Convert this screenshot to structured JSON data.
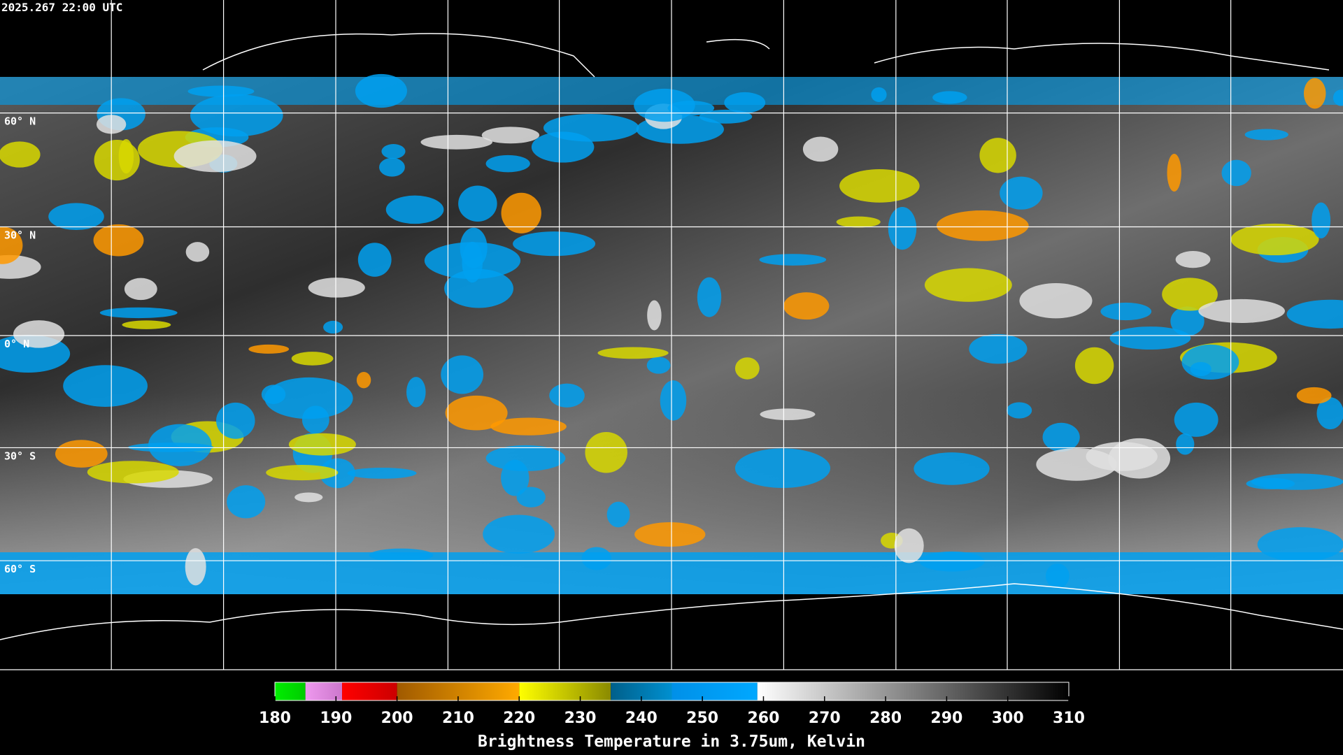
{
  "timestamp": "2025.267 22:00 UTC",
  "latitude_labels": [
    "60° N",
    "30° N",
    "0° N",
    "30° S",
    "60° S"
  ],
  "colorbar": {
    "title": "Brightness Temperature in 3.75um, Kelvin",
    "range": [
      180,
      310
    ],
    "ticks": [
      180,
      190,
      200,
      210,
      220,
      230,
      240,
      250,
      260,
      270,
      280,
      290,
      300,
      310
    ],
    "segments": [
      {
        "from": 180,
        "to": 185,
        "colors": [
          "#00ee00",
          "#00cc00"
        ]
      },
      {
        "from": 185,
        "to": 191,
        "colors": [
          "#ee99ee",
          "#cc77cc"
        ]
      },
      {
        "from": 191,
        "to": 200,
        "colors": [
          "#ff0000",
          "#cc0000"
        ]
      },
      {
        "from": 200,
        "to": 220,
        "colors": [
          "#a05a00",
          "#ffaa00"
        ]
      },
      {
        "from": 220,
        "to": 235,
        "colors": [
          "#ffff00",
          "#8a8a00"
        ]
      },
      {
        "from": 235,
        "to": 245,
        "colors": [
          "#005f8a",
          "#0090d0"
        ]
      },
      {
        "from": 245,
        "to": 259,
        "colors": [
          "#0090e8",
          "#00a8ff"
        ]
      },
      {
        "from": 259,
        "to": 310,
        "colors": [
          "#ffffff",
          "#000000"
        ]
      }
    ]
  }
}
